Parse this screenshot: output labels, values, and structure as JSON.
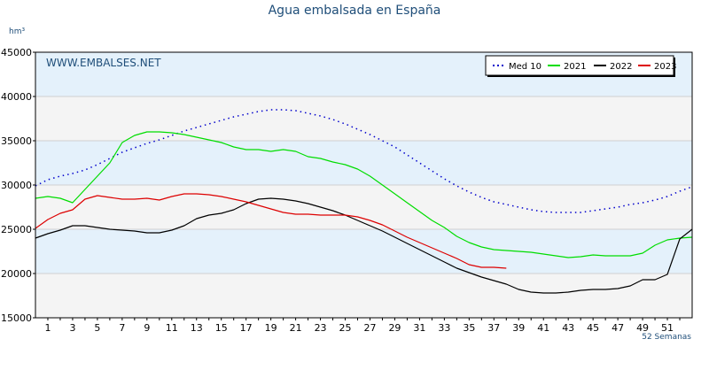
{
  "chart_data": {
    "type": "line",
    "title": "Agua embalsada en España",
    "ylabel_unit": "hm³",
    "xlabel": "52 Semanas",
    "watermark": "WWW.EMBALSES.NET",
    "ylim": [
      15000,
      45000
    ],
    "xlim": [
      0,
      53
    ],
    "yticks": [
      15000,
      20000,
      25000,
      30000,
      35000,
      40000,
      45000
    ],
    "xticks": [
      1,
      3,
      5,
      7,
      9,
      11,
      13,
      15,
      17,
      19,
      21,
      23,
      25,
      27,
      29,
      31,
      33,
      35,
      37,
      39,
      41,
      43,
      45,
      47,
      49,
      51
    ],
    "legend_position": "top-right",
    "series": [
      {
        "name": "Med 10",
        "color": "#0000cc",
        "style": "dotted",
        "x": [
          0,
          1,
          2,
          3,
          4,
          5,
          6,
          7,
          8,
          9,
          10,
          11,
          12,
          13,
          14,
          15,
          16,
          17,
          18,
          19,
          20,
          21,
          22,
          23,
          24,
          25,
          26,
          27,
          28,
          29,
          30,
          31,
          32,
          33,
          34,
          35,
          36,
          37,
          38,
          39,
          40,
          41,
          42,
          43,
          44,
          45,
          46,
          47,
          48,
          49,
          50,
          51,
          52,
          53
        ],
        "values": [
          29900,
          30600,
          31000,
          31300,
          31700,
          32300,
          33000,
          33700,
          34200,
          34700,
          35100,
          35600,
          36100,
          36500,
          36900,
          37300,
          37700,
          38000,
          38300,
          38500,
          38500,
          38400,
          38100,
          37800,
          37400,
          36900,
          36300,
          35700,
          35000,
          34300,
          33400,
          32500,
          31600,
          30700,
          29900,
          29200,
          28600,
          28100,
          27800,
          27500,
          27200,
          27000,
          26900,
          26900,
          26900,
          27100,
          27300,
          27500,
          27800,
          28000,
          28300,
          28700,
          29300,
          29800
        ]
      },
      {
        "name": "2021",
        "color": "#00dd00",
        "style": "solid",
        "x": [
          0,
          1,
          2,
          3,
          4,
          5,
          6,
          7,
          8,
          9,
          10,
          11,
          12,
          13,
          14,
          15,
          16,
          17,
          18,
          19,
          20,
          21,
          22,
          23,
          24,
          25,
          26,
          27,
          28,
          29,
          30,
          31,
          32,
          33,
          34,
          35,
          36,
          37,
          38,
          39,
          40,
          41,
          42,
          43,
          44,
          45,
          46,
          47,
          48,
          49,
          50,
          51,
          52,
          53
        ],
        "values": [
          28500,
          28700,
          28500,
          28000,
          29500,
          31000,
          32500,
          34800,
          35600,
          36000,
          36000,
          35900,
          35700,
          35400,
          35100,
          34800,
          34300,
          34000,
          34000,
          33800,
          34000,
          33800,
          33200,
          33000,
          32600,
          32300,
          31800,
          31000,
          30000,
          29000,
          28000,
          27000,
          26000,
          25200,
          24200,
          23500,
          23000,
          22700,
          22600,
          22500,
          22400,
          22200,
          22000,
          21800,
          21900,
          22100,
          22000,
          22000,
          22000,
          22300,
          23200,
          23800,
          24000,
          24100
        ]
      },
      {
        "name": "2022",
        "color": "#000000",
        "style": "solid",
        "x": [
          0,
          1,
          2,
          3,
          4,
          5,
          6,
          7,
          8,
          9,
          10,
          11,
          12,
          13,
          14,
          15,
          16,
          17,
          18,
          19,
          20,
          21,
          22,
          23,
          24,
          25,
          26,
          27,
          28,
          29,
          30,
          31,
          32,
          33,
          34,
          35,
          36,
          37,
          38,
          39,
          40,
          41,
          42,
          43,
          44,
          45,
          46,
          47,
          48,
          49,
          50,
          51,
          52,
          53
        ],
        "values": [
          24000,
          24500,
          24900,
          25400,
          25400,
          25200,
          25000,
          24900,
          24800,
          24600,
          24600,
          24900,
          25400,
          26200,
          26600,
          26800,
          27200,
          27900,
          28400,
          28500,
          28400,
          28200,
          27900,
          27500,
          27100,
          26600,
          26000,
          25400,
          24800,
          24100,
          23400,
          22700,
          22000,
          21300,
          20600,
          20100,
          19600,
          19200,
          18800,
          18200,
          17900,
          17800,
          17800,
          17900,
          18100,
          18200,
          18200,
          18300,
          18600,
          19300,
          19300,
          19900,
          23900,
          25000
        ]
      },
      {
        "name": "2023",
        "color": "#dd0000",
        "style": "solid",
        "x": [
          0,
          1,
          2,
          3,
          4,
          5,
          6,
          7,
          8,
          9,
          10,
          11,
          12,
          13,
          14,
          15,
          16,
          17,
          18,
          19,
          20,
          21,
          22,
          23,
          24,
          25,
          26,
          27,
          28,
          29,
          30,
          31,
          32,
          33,
          34,
          35,
          36,
          37,
          38
        ],
        "values": [
          25100,
          26100,
          26800,
          27200,
          28400,
          28800,
          28600,
          28400,
          28400,
          28500,
          28300,
          28700,
          29000,
          29000,
          28900,
          28700,
          28400,
          28100,
          27700,
          27300,
          26900,
          26700,
          26700,
          26600,
          26600,
          26600,
          26400,
          26000,
          25500,
          24800,
          24100,
          23500,
          22900,
          22300,
          21700,
          21000,
          20700,
          20700,
          20600
        ]
      }
    ]
  }
}
